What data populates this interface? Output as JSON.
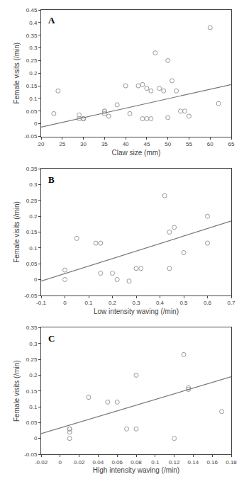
{
  "chart_data": [
    {
      "type": "scatter",
      "annotations": [
        "A"
      ],
      "xlabel": "Claw size (mm)",
      "ylabel": "Female visits (/min)",
      "xlim": [
        20,
        65
      ],
      "ylim": [
        -0.05,
        0.45
      ],
      "xticks": [
        20,
        25,
        30,
        35,
        40,
        45,
        50,
        55,
        60,
        65
      ],
      "yticks": [
        -0.05,
        0,
        0.05,
        0.1,
        0.15,
        0.2,
        0.25,
        0.3,
        0.35,
        0.4,
        0.45
      ],
      "grid": false,
      "series": [
        {
          "type": "scatter",
          "marker": "circle-open",
          "color": "#999999",
          "x": [
            23,
            24,
            29,
            29,
            30,
            30,
            30,
            35,
            35,
            35,
            36,
            38,
            40,
            41,
            43,
            44,
            44,
            45,
            45,
            46,
            46,
            47,
            48,
            49,
            50,
            50,
            51,
            52,
            53,
            54,
            55,
            60,
            62
          ],
          "values": [
            0.04,
            0.13,
            0.035,
            0.02,
            0.02,
            0.02,
            0.02,
            0.05,
            0.05,
            0.04,
            0.03,
            0.075,
            0.15,
            0.04,
            0.15,
            0.155,
            0.02,
            0.02,
            0.14,
            0.13,
            0.02,
            0.28,
            0.14,
            0.13,
            0.025,
            0.25,
            0.17,
            0.13,
            0.05,
            0.05,
            0.03,
            0.38,
            0.08
          ]
        },
        {
          "type": "line",
          "line_style": "solid",
          "color": "#777777",
          "x": [
            20,
            65
          ],
          "values": [
            -0.013,
            0.155
          ]
        }
      ]
    },
    {
      "type": "scatter",
      "annotations": [
        "B"
      ],
      "xlabel": "Low intensity waving (/min)",
      "ylabel": "Female visits (/min)",
      "xlim": [
        -0.1,
        0.7
      ],
      "ylim": [
        -0.05,
        0.35
      ],
      "xticks": [
        -0.1,
        0,
        0.1,
        0.2,
        0.3,
        0.4,
        0.5,
        0.6,
        0.7
      ],
      "yticks": [
        -0.05,
        0,
        0.05,
        0.1,
        0.15,
        0.2,
        0.25,
        0.3,
        0.35
      ],
      "grid": false,
      "series": [
        {
          "type": "scatter",
          "marker": "circle-open",
          "color": "#999999",
          "x": [
            0.0,
            0.0,
            0.05,
            0.13,
            0.15,
            0.15,
            0.2,
            0.22,
            0.27,
            0.3,
            0.32,
            0.42,
            0.44,
            0.44,
            0.46,
            0.5,
            0.6,
            0.6
          ],
          "values": [
            0.03,
            0.0,
            0.13,
            0.115,
            0.115,
            0.02,
            0.02,
            0.0,
            -0.005,
            0.035,
            0.035,
            0.265,
            0.15,
            0.035,
            0.165,
            0.085,
            0.2,
            0.115
          ]
        },
        {
          "type": "line",
          "line_style": "solid",
          "color": "#777777",
          "x": [
            -0.1,
            0.7
          ],
          "values": [
            -0.005,
            0.185
          ]
        }
      ]
    },
    {
      "type": "scatter",
      "annotations": [
        "C"
      ],
      "xlabel": "High intensity waving (/min)",
      "ylabel": "Female visits (/min)",
      "xlim": [
        -0.02,
        0.18
      ],
      "ylim": [
        -0.05,
        0.35
      ],
      "xticks": [
        -0.02,
        0,
        0.02,
        0.04,
        0.06,
        0.08,
        0.1,
        0.12,
        0.14,
        0.16,
        0.18
      ],
      "yticks": [
        -0.05,
        0,
        0.05,
        0.1,
        0.15,
        0.2,
        0.25,
        0.3,
        0.35
      ],
      "grid": false,
      "series": [
        {
          "type": "scatter",
          "marker": "circle-open",
          "color": "#999999",
          "x": [
            0.01,
            0.01,
            0.01,
            0.01,
            0.03,
            0.05,
            0.06,
            0.07,
            0.08,
            0.08,
            0.12,
            0.13,
            0.135,
            0.135,
            0.17
          ],
          "values": [
            0.03,
            0.03,
            0.02,
            0.0,
            0.13,
            0.115,
            0.115,
            0.03,
            0.03,
            0.2,
            0.0,
            0.265,
            0.155,
            0.16,
            0.085
          ]
        },
        {
          "type": "line",
          "line_style": "solid",
          "color": "#777777",
          "x": [
            -0.02,
            0.18
          ],
          "values": [
            0.015,
            0.195
          ]
        }
      ]
    }
  ]
}
